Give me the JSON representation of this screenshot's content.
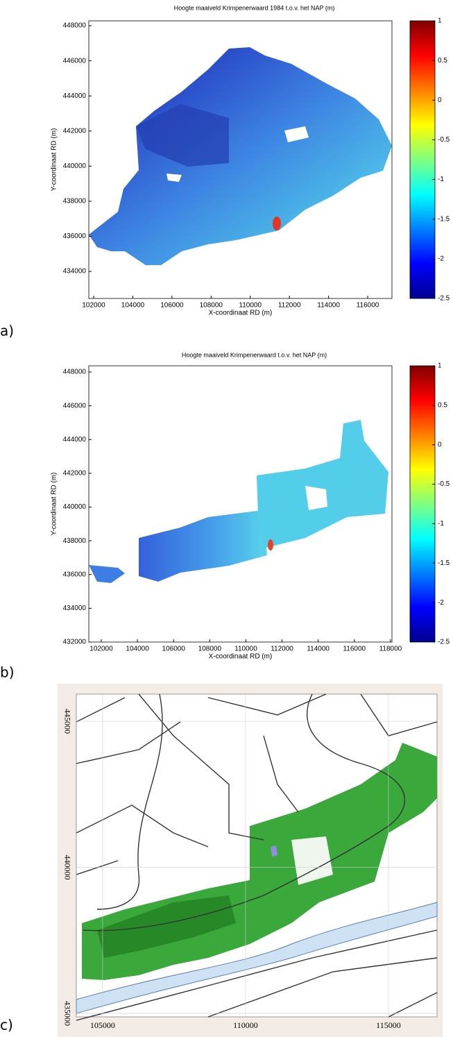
{
  "chart_data": [
    {
      "type": "scatter",
      "title": "Hoogte maaiveld Krimpenerwaard 1984 t.o.v. het NAP (m)",
      "xlabel": "X-coordinaat RD (m)",
      "ylabel": "Y-coordinaat RD (m)",
      "xlim": [
        101750,
        117240
      ],
      "ylim": [
        432460,
        448280
      ],
      "xticks": [
        102000,
        104000,
        106000,
        108000,
        110000,
        112000,
        114000,
        116000
      ],
      "yticks": [
        434000,
        436000,
        438000,
        440000,
        442000,
        444000,
        446000,
        448000
      ],
      "colorbar": {
        "clim": [
          -2.5,
          1
        ],
        "ticks": [
          1,
          0.5,
          0,
          -0.5,
          -1,
          -1.5,
          -2,
          -2.5
        ]
      },
      "panel_label": "a)"
    },
    {
      "type": "scatter",
      "title": "Hoogte maaiveld Krimpenerwaard t.o.v. het NAP (m)",
      "xlabel": "X-coordinaat RD (m)",
      "ylabel": "Y-coordinaat RD (m)",
      "xlim": [
        101310,
        118080
      ],
      "ylim": [
        432000,
        448370
      ],
      "xticks": [
        102000,
        104000,
        106000,
        108000,
        110000,
        112000,
        114000,
        116000,
        118000
      ],
      "yticks": [
        432000,
        434000,
        436000,
        438000,
        440000,
        442000,
        444000,
        446000,
        448000
      ],
      "colorbar": {
        "clim": [
          -2.5,
          1
        ],
        "ticks": [
          1,
          0.5,
          0,
          -0.5,
          -1,
          -1.5,
          -2,
          -2.5
        ]
      },
      "panel_label": "b)"
    },
    {
      "type": "map",
      "xlim": [
        104080,
        116700
      ],
      "ylim": [
        434880,
        445930
      ],
      "xticks": [
        105000,
        110000,
        115000
      ],
      "yticks": [
        435000,
        440000,
        445000
      ],
      "grid": true,
      "panel_label": "c)"
    }
  ]
}
